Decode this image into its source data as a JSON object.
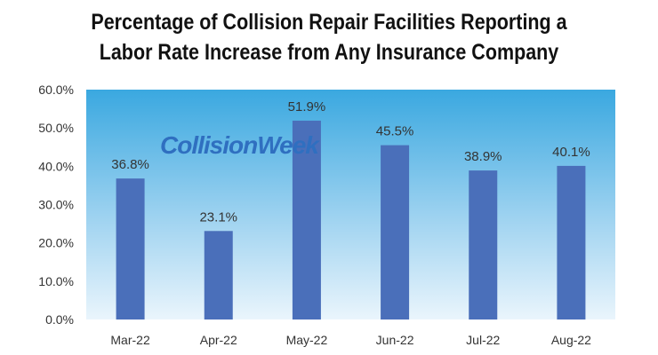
{
  "chart_data": {
    "type": "bar",
    "title_lines": [
      "Percentage of Collision Repair Facilities Reporting a",
      "Labor Rate Increase from Any Insurance Company"
    ],
    "categories": [
      "Mar-22",
      "Apr-22",
      "May-22",
      "Jun-22",
      "Jul-22",
      "Aug-22"
    ],
    "values": [
      36.8,
      23.1,
      51.9,
      45.5,
      38.9,
      40.1
    ],
    "data_labels": [
      "36.8%",
      "23.1%",
      "51.9%",
      "45.5%",
      "38.9%",
      "40.1%"
    ],
    "y_ticks": [
      "0.0%",
      "10.0%",
      "20.0%",
      "30.0%",
      "40.0%",
      "50.0%",
      "60.0%"
    ],
    "ylim": [
      0,
      60
    ],
    "grid": false,
    "legend": "none",
    "watermark": "CollisionWeek",
    "colors": {
      "bar": "#4a6fba",
      "plot_bg_top": "#3aa8e0",
      "plot_bg_bottom": "#eaf5fc"
    }
  }
}
